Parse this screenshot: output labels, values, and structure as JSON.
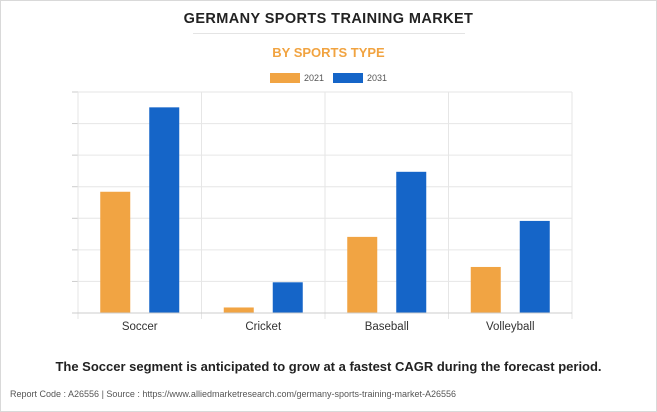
{
  "page": {
    "title": "GERMANY SPORTS TRAINING MARKET",
    "subtitle": "BY SPORTS TYPE",
    "note": "The Soccer segment is anticipated to grow at a fastest CAGR during the forecast period.",
    "source": "Report Code : A26556  |  Source : https://www.alliedmarketresearch.com/germany-sports-training-market-A26556"
  },
  "chart_data": {
    "type": "bar",
    "title": "GERMANY SPORTS TRAINING MARKET",
    "subtitle": "BY SPORTS TYPE",
    "categories": [
      "Soccer",
      "Cricket",
      "Baseball",
      "Volleyball"
    ],
    "series": [
      {
        "name": "2021",
        "color": "#f1a443",
        "values": [
          3.95,
          0.18,
          2.48,
          1.5
        ]
      },
      {
        "name": "2031",
        "color": "#1565c8",
        "values": [
          6.7,
          1.0,
          4.6,
          3.0
        ]
      }
    ],
    "xlabel": "",
    "ylabel": "",
    "ylim": [
      0,
      7.2
    ],
    "y_tick_labels_shown": false,
    "grid": true,
    "legend_position": "top-center"
  }
}
